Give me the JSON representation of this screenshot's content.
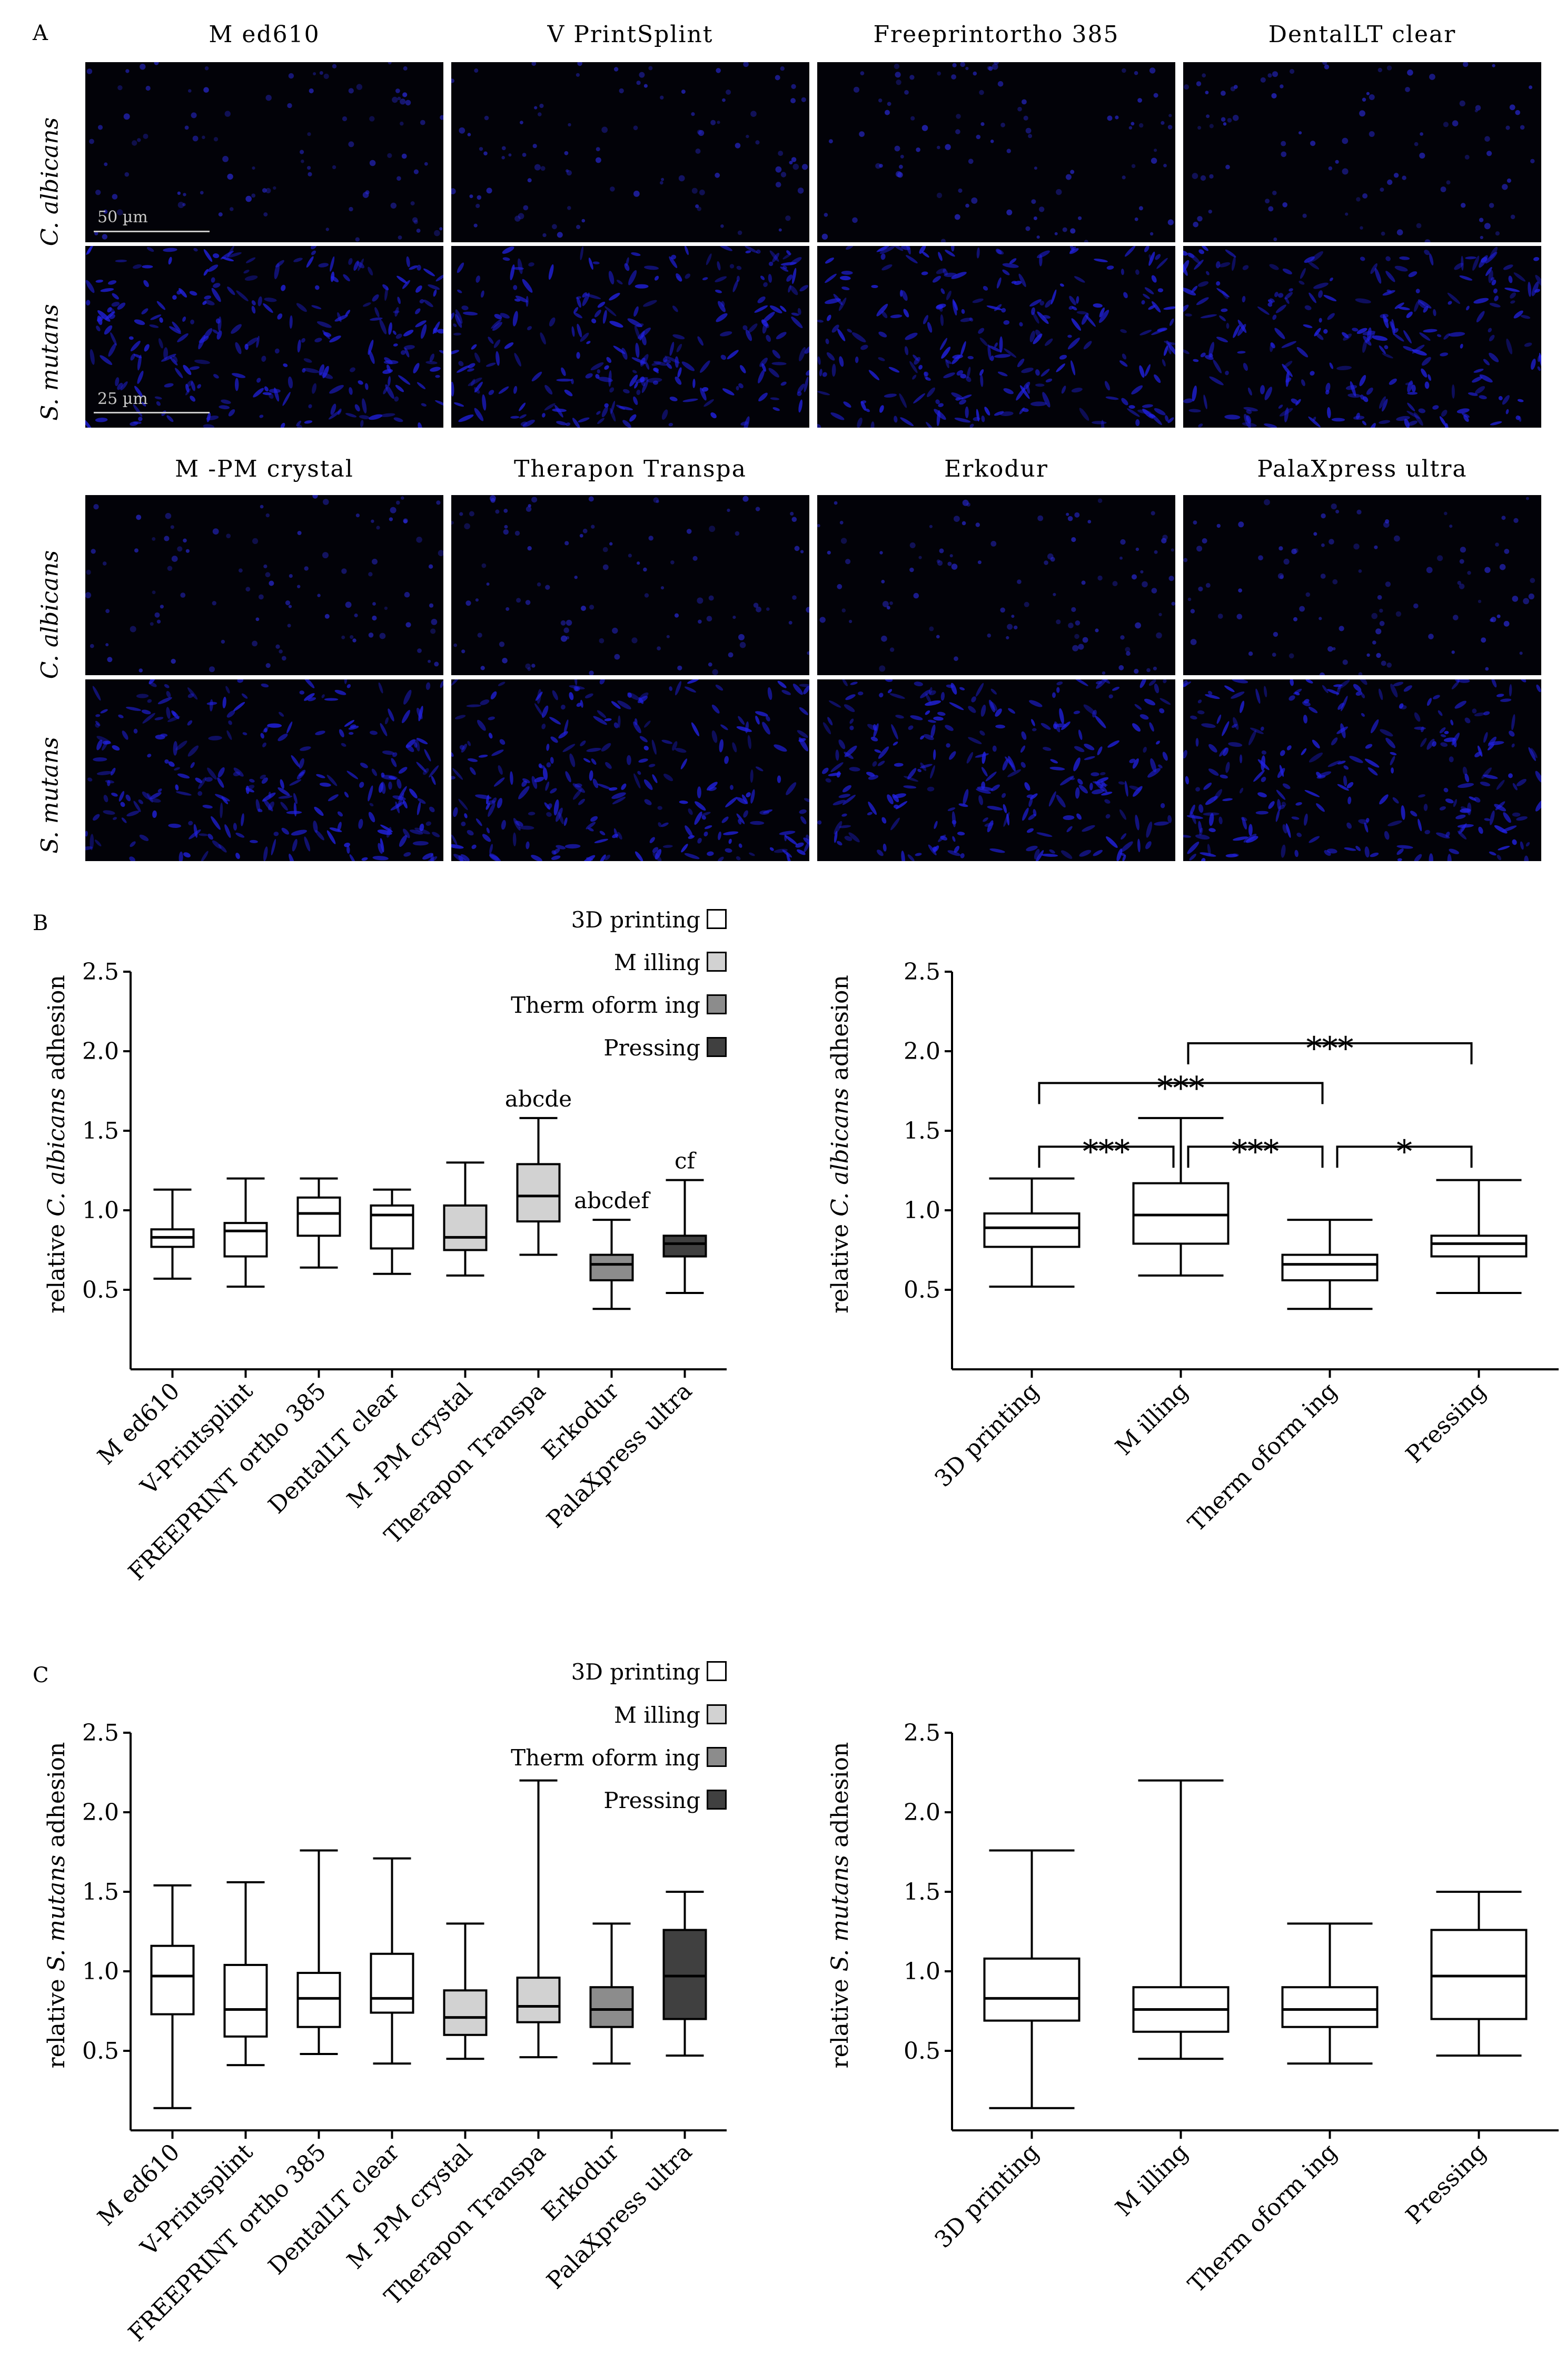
{
  "panel_a": {
    "letter": "A",
    "groups": [
      {
        "materials": [
          "M ed610",
          "V PrintSplint",
          "Freeprintortho 385",
          "DentalLT clear"
        ]
      },
      {
        "materials": [
          "M -PM crystal",
          "Therapon Transpa",
          "Erkodur",
          "PalaXpress ultra"
        ]
      }
    ],
    "rows": [
      "C. albicans",
      "S. mutans"
    ],
    "scale_bars": {
      "c_albicans": "50 µm",
      "s_mutans": "25 µm"
    },
    "colors": {
      "background": "#020208",
      "albicans_cells": "#2a2ad8",
      "mutans_cells": "#2222e6"
    }
  },
  "legend": {
    "entries": [
      {
        "label": "3D printing",
        "color": "#ffffff"
      },
      {
        "label": "M illing",
        "color": "#d2d2d2"
      },
      {
        "label": "Therm oform ing",
        "color": "#8c8c8c"
      },
      {
        "label": "Pressing",
        "color": "#404040"
      }
    ]
  },
  "chart_data": [
    {
      "id": "B-left",
      "panel_letter": "B",
      "type": "box",
      "ylabel": "relative C. albicans adhesion",
      "ylabel_parts": {
        "pre": "relative ",
        "italic": "C. albicans",
        "post": " adhesion"
      },
      "ylim": [
        0,
        2.5
      ],
      "y_ticks": [
        0.5,
        1.0,
        1.5,
        2.0,
        2.5
      ],
      "categories": [
        "M ed610",
        "V-Printsplint",
        "FREEPRINT ortho 385",
        "DentalLT clear",
        "M -PM crystal",
        "Therapon Transpa",
        "Erkodur",
        "PalaXpress ultra"
      ],
      "category_colors": [
        "#ffffff",
        "#ffffff",
        "#ffffff",
        "#ffffff",
        "#d2d2d2",
        "#d2d2d2",
        "#8c8c8c",
        "#404040"
      ],
      "boxes": [
        {
          "min": 0.57,
          "q1": 0.77,
          "median": 0.83,
          "q3": 0.88,
          "max": 1.13
        },
        {
          "min": 0.52,
          "q1": 0.71,
          "median": 0.87,
          "q3": 0.92,
          "max": 1.2
        },
        {
          "min": 0.64,
          "q1": 0.84,
          "median": 0.98,
          "q3": 1.08,
          "max": 1.2
        },
        {
          "min": 0.6,
          "q1": 0.76,
          "median": 0.97,
          "q3": 1.03,
          "max": 1.13
        },
        {
          "min": 0.59,
          "q1": 0.75,
          "median": 0.83,
          "q3": 1.03,
          "max": 1.3
        },
        {
          "min": 0.72,
          "q1": 0.93,
          "median": 1.09,
          "q3": 1.29,
          "max": 1.58
        },
        {
          "min": 0.38,
          "q1": 0.56,
          "median": 0.66,
          "q3": 0.72,
          "max": 0.94
        },
        {
          "min": 0.48,
          "q1": 0.71,
          "median": 0.79,
          "q3": 0.84,
          "max": 1.19
        }
      ],
      "annotations": [
        {
          "category": "Therapon Transpa",
          "text": "abcde"
        },
        {
          "category": "Erkodur",
          "text": "abcdef"
        },
        {
          "category": "PalaXpress ultra",
          "text": "cf"
        }
      ]
    },
    {
      "id": "B-right",
      "type": "box",
      "ylabel": "relative C. albicans adhesion",
      "ylabel_parts": {
        "pre": "relative ",
        "italic": "C. albicans",
        "post": " adhesion"
      },
      "ylim": [
        0,
        2.5
      ],
      "y_ticks": [
        0.5,
        1.0,
        1.5,
        2.0,
        2.5
      ],
      "categories": [
        "3D printing",
        "M illing",
        "Therm oform ing",
        "Pressing"
      ],
      "category_colors": [
        "#ffffff",
        "#ffffff",
        "#ffffff",
        "#ffffff"
      ],
      "boxes": [
        {
          "min": 0.52,
          "q1": 0.77,
          "median": 0.89,
          "q3": 0.98,
          "max": 1.2
        },
        {
          "min": 0.59,
          "q1": 0.79,
          "median": 0.97,
          "q3": 1.17,
          "max": 1.58
        },
        {
          "min": 0.38,
          "q1": 0.56,
          "median": 0.66,
          "q3": 0.72,
          "max": 0.94
        },
        {
          "min": 0.48,
          "q1": 0.71,
          "median": 0.79,
          "q3": 0.84,
          "max": 1.19
        }
      ],
      "significance": [
        {
          "from": 1,
          "to": 3,
          "y": 2.05,
          "label": "***"
        },
        {
          "from": 0,
          "to": 2,
          "y": 1.8,
          "label": "***"
        },
        {
          "from": 0,
          "to": 1,
          "y": 1.4,
          "label": "***"
        },
        {
          "from": 1,
          "to": 2,
          "y": 1.4,
          "label": "***"
        },
        {
          "from": 2,
          "to": 3,
          "y": 1.4,
          "label": "*"
        }
      ]
    },
    {
      "id": "C-left",
      "panel_letter": "C",
      "type": "box",
      "ylabel": "relative S. mutans adhesion",
      "ylabel_parts": {
        "pre": "relative ",
        "italic": "S. mutans",
        "post": " adhesion"
      },
      "ylim": [
        0,
        2.5
      ],
      "y_ticks": [
        0.5,
        1.0,
        1.5,
        2.0,
        2.5
      ],
      "categories": [
        "M ed610",
        "V-Printsplint",
        "FREEPRINT ortho 385",
        "DentalLT clear",
        "M -PM crystal",
        "Therapon Transpa",
        "Erkodur",
        "PalaXpress ultra"
      ],
      "category_colors": [
        "#ffffff",
        "#ffffff",
        "#ffffff",
        "#ffffff",
        "#d2d2d2",
        "#d2d2d2",
        "#8c8c8c",
        "#404040"
      ],
      "boxes": [
        {
          "min": 0.14,
          "q1": 0.73,
          "median": 0.97,
          "q3": 1.16,
          "max": 1.54
        },
        {
          "min": 0.41,
          "q1": 0.59,
          "median": 0.76,
          "q3": 1.04,
          "max": 1.56
        },
        {
          "min": 0.48,
          "q1": 0.65,
          "median": 0.83,
          "q3": 0.99,
          "max": 1.76
        },
        {
          "min": 0.42,
          "q1": 0.74,
          "median": 0.83,
          "q3": 1.11,
          "max": 1.71
        },
        {
          "min": 0.45,
          "q1": 0.6,
          "median": 0.71,
          "q3": 0.88,
          "max": 1.3
        },
        {
          "min": 0.46,
          "q1": 0.68,
          "median": 0.78,
          "q3": 0.96,
          "max": 2.2
        },
        {
          "min": 0.42,
          "q1": 0.65,
          "median": 0.76,
          "q3": 0.9,
          "max": 1.3
        },
        {
          "min": 0.47,
          "q1": 0.7,
          "median": 0.97,
          "q3": 1.26,
          "max": 1.5
        }
      ]
    },
    {
      "id": "C-right",
      "type": "box",
      "ylabel": "relative S. mutans adhesion",
      "ylabel_parts": {
        "pre": "relative ",
        "italic": "S. mutans",
        "post": " adhesion"
      },
      "ylim": [
        0,
        2.5
      ],
      "y_ticks": [
        0.5,
        1.0,
        1.5,
        2.0,
        2.5
      ],
      "categories": [
        "3D printing",
        "M illing",
        "Therm oform ing",
        "Pressing"
      ],
      "category_colors": [
        "#ffffff",
        "#ffffff",
        "#ffffff",
        "#ffffff"
      ],
      "boxes": [
        {
          "min": 0.14,
          "q1": 0.69,
          "median": 0.83,
          "q3": 1.08,
          "max": 1.76
        },
        {
          "min": 0.45,
          "q1": 0.62,
          "median": 0.76,
          "q3": 0.9,
          "max": 2.2
        },
        {
          "min": 0.42,
          "q1": 0.65,
          "median": 0.76,
          "q3": 0.9,
          "max": 1.3
        },
        {
          "min": 0.47,
          "q1": 0.7,
          "median": 0.97,
          "q3": 1.26,
          "max": 1.5
        }
      ]
    }
  ]
}
